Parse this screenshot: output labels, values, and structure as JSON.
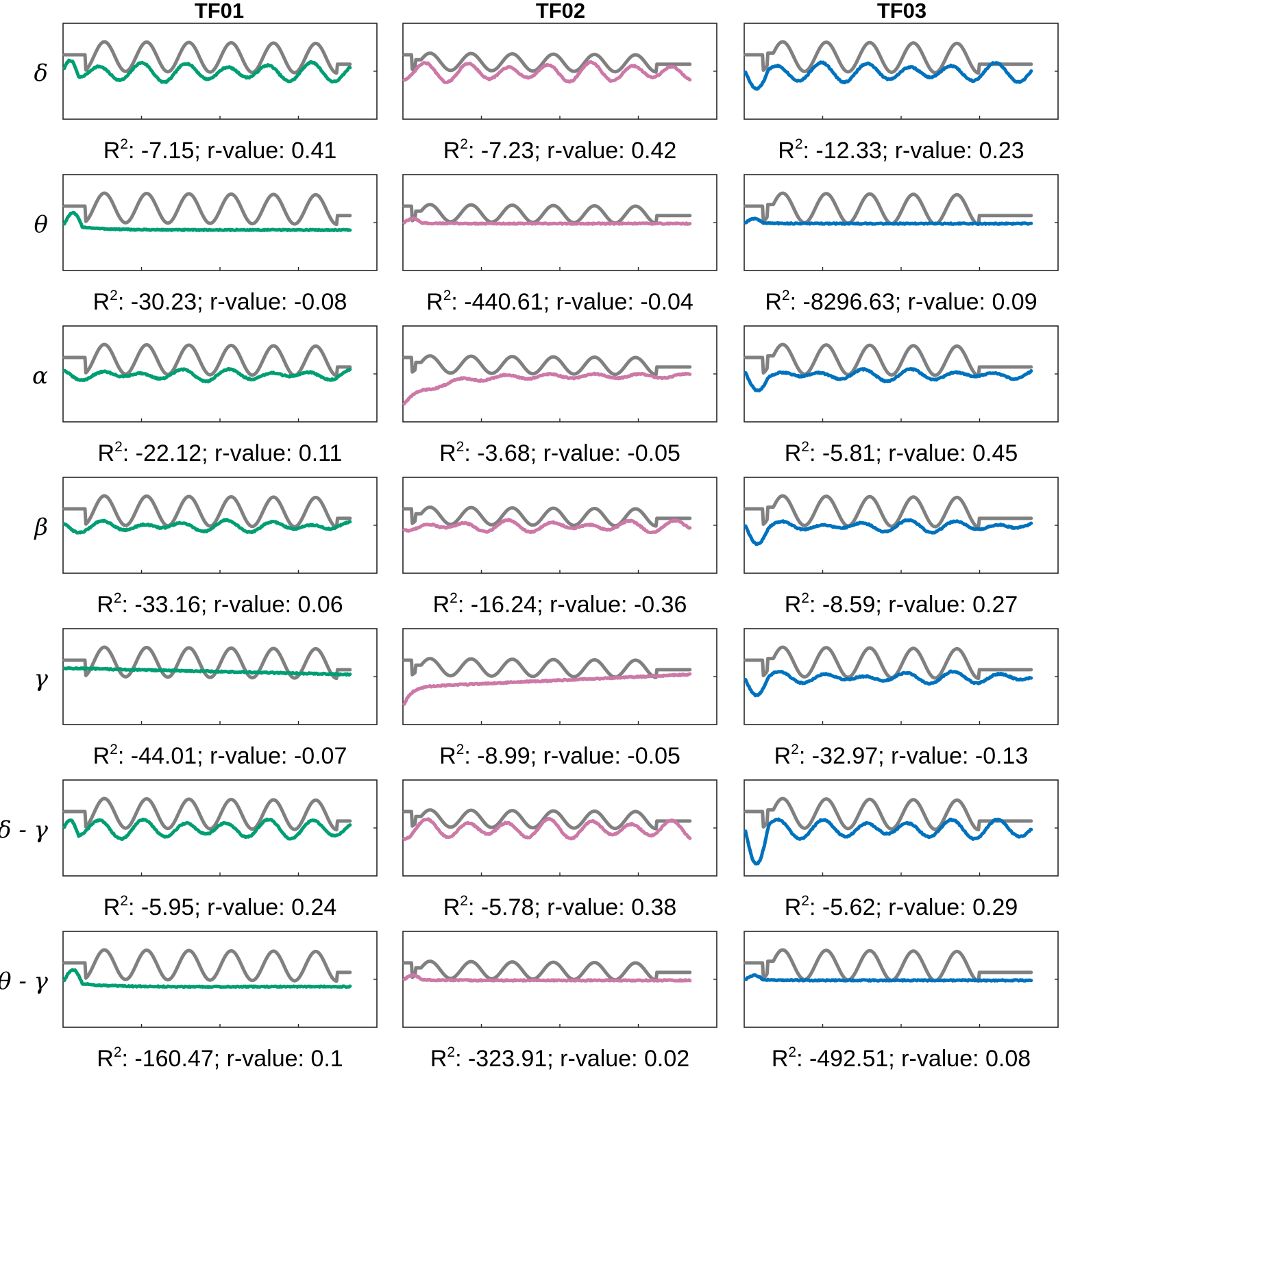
{
  "columns": [
    "TF01",
    "TF02",
    "TF03"
  ],
  "rows": [
    "δ",
    "θ",
    "α",
    "β",
    "γ",
    "δ - γ",
    "θ - γ"
  ],
  "colors": {
    "reference": "#808080",
    "TF01": "#009e73",
    "TF02": "#cc79a7",
    "TF03": "#0072bd"
  },
  "stat_labels": {
    "r2": "R",
    "r2_sup": "2",
    "r2_sep": ": ",
    "r_prefix": ";  r-value: "
  },
  "chart_data": {
    "type": "line",
    "layout": "grid 7 rows x 3 columns",
    "series": [
      "reference",
      "predicted"
    ],
    "stats": [
      [
        {
          "r2": "-7.15",
          "r": "0.41"
        },
        {
          "r2": "-7.23",
          "r": "0.42"
        },
        {
          "r2": "-12.33",
          "r": "0.23"
        }
      ],
      [
        {
          "r2": "-30.23",
          "r": "-0.08"
        },
        {
          "r2": "-440.61",
          "r": "-0.04"
        },
        {
          "r2": "-8296.63",
          "r": "0.09"
        }
      ],
      [
        {
          "r2": "-22.12",
          "r": "0.11"
        },
        {
          "r2": "-3.68",
          "r": "-0.05"
        },
        {
          "r2": "-5.81",
          "r": "0.45"
        }
      ],
      [
        {
          "r2": "-33.16",
          "r": "0.06"
        },
        {
          "r2": "-16.24",
          "r": "-0.36"
        },
        {
          "r2": "-8.59",
          "r": "0.27"
        }
      ],
      [
        {
          "r2": "-44.01",
          "r": "-0.07"
        },
        {
          "r2": "-8.99",
          "r": "-0.05"
        },
        {
          "r2": "-32.97",
          "r": "-0.13"
        }
      ],
      [
        {
          "r2": "-5.95",
          "r": "0.24"
        },
        {
          "r2": "-5.78",
          "r": "0.38"
        },
        {
          "r2": "-5.62",
          "r": "0.29"
        }
      ],
      [
        {
          "r2": "-160.47",
          "r": "0.1"
        },
        {
          "r2": "-323.91",
          "r": "0.02"
        },
        {
          "r2": "-492.51",
          "r": "0.08"
        }
      ]
    ],
    "reference_peaks": [
      [
        0.14,
        0.28,
        0.42,
        0.56,
        0.72,
        0.88
      ],
      [
        0.09,
        0.22,
        0.37,
        0.51,
        0.66,
        0.81
      ],
      [
        0.13,
        0.28,
        0.44,
        0.59,
        0.74
      ]
    ],
    "reference_amplitude": [
      0.95,
      0.55,
      0.95
    ],
    "reference_shoulder": [
      false,
      true,
      true
    ]
  }
}
